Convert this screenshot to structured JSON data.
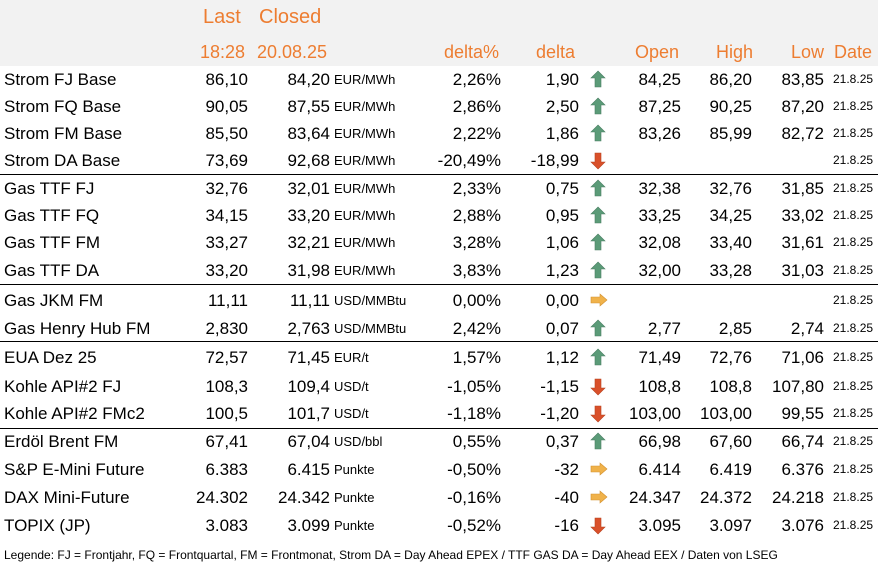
{
  "header": {
    "last_label": "Last",
    "closed_label": "Closed",
    "last_time": "18:28",
    "closed_date": "20.08.25",
    "delta_pct": "delta%",
    "delta": "delta",
    "open": "Open",
    "high": "High",
    "low": "Low",
    "date": "Date"
  },
  "rows": [
    {
      "name": "Strom FJ Base",
      "last": "86,10",
      "closed": "84,20",
      "unit": "EUR/MWh",
      "dp": "2,26%",
      "d": "1,90",
      "dir": "up",
      "open": "84,25",
      "high": "86,20",
      "low": "83,85",
      "date": "21.8.25"
    },
    {
      "name": "Strom FQ Base",
      "last": "90,05",
      "closed": "87,55",
      "unit": "EUR/MWh",
      "dp": "2,86%",
      "d": "2,50",
      "dir": "up",
      "open": "87,25",
      "high": "90,25",
      "low": "87,20",
      "date": "21.8.25"
    },
    {
      "name": "Strom FM Base",
      "last": "85,50",
      "closed": "83,64",
      "unit": "EUR/MWh",
      "dp": "2,22%",
      "d": "1,86",
      "dir": "up",
      "open": "83,26",
      "high": "85,99",
      "low": "82,72",
      "date": "21.8.25"
    },
    {
      "name": "Strom DA Base",
      "last": "73,69",
      "closed": "92,68",
      "unit": "EUR/MWh",
      "dp": "-20,49%",
      "d": "-18,99",
      "dir": "down",
      "open": "",
      "high": "",
      "low": "",
      "date": "21.8.25"
    },
    {
      "name": "Gas TTF FJ",
      "last": "32,76",
      "closed": "32,01",
      "unit": "EUR/MWh",
      "dp": "2,33%",
      "d": "0,75",
      "dir": "up",
      "open": "32,38",
      "high": "32,76",
      "low": "31,85",
      "date": "21.8.25"
    },
    {
      "name": "Gas TTF FQ",
      "last": "34,15",
      "closed": "33,20",
      "unit": "EUR/MWh",
      "dp": "2,88%",
      "d": "0,95",
      "dir": "up",
      "open": "33,25",
      "high": "34,25",
      "low": "33,02",
      "date": "21.8.25"
    },
    {
      "name": "Gas TTF FM",
      "last": "33,27",
      "closed": "32,21",
      "unit": "EUR/MWh",
      "dp": "3,28%",
      "d": "1,06",
      "dir": "up",
      "open": "32,08",
      "high": "33,40",
      "low": "31,61",
      "date": "21.8.25"
    },
    {
      "name": "Gas TTF DA",
      "last": "33,20",
      "closed": "31,98",
      "unit": "EUR/MWh",
      "dp": "3,83%",
      "d": "1,23",
      "dir": "up",
      "open": "32,00",
      "high": "33,28",
      "low": "31,03",
      "date": "21.8.25"
    },
    {
      "name": "Gas JKM FM",
      "last": "11,11",
      "closed": "11,11",
      "unit": "USD/MMBtu",
      "dp": "0,00%",
      "d": "0,00",
      "dir": "flat",
      "open": "",
      "high": "",
      "low": "",
      "date": "21.8.25"
    },
    {
      "name": "Gas Henry Hub FM",
      "last": "2,830",
      "closed": "2,763",
      "unit": "USD/MMBtu",
      "dp": "2,42%",
      "d": "0,07",
      "dir": "up",
      "open": "2,77",
      "high": "2,85",
      "low": "2,74",
      "date": "21.8.25"
    },
    {
      "name": "EUA Dez 25",
      "last": "72,57",
      "closed": "71,45",
      "unit": "EUR/t",
      "dp": "1,57%",
      "d": "1,12",
      "dir": "up",
      "open": "71,49",
      "high": "72,76",
      "low": "71,06",
      "date": "21.8.25"
    },
    {
      "name": "Kohle API#2 FJ",
      "last": "108,3",
      "closed": "109,4",
      "unit": "USD/t",
      "dp": "-1,05%",
      "d": "-1,15",
      "dir": "down",
      "open": "108,8",
      "high": "108,8",
      "low": "107,80",
      "date": "21.8.25"
    },
    {
      "name": "Kohle API#2 FMc2",
      "last": "100,5",
      "closed": "101,7",
      "unit": "USD/t",
      "dp": "-1,18%",
      "d": "-1,20",
      "dir": "down",
      "open": "103,00",
      "high": "103,00",
      "low": "99,55",
      "date": "21.8.25"
    },
    {
      "name": "Erdöl Brent FM",
      "last": "67,41",
      "closed": "67,04",
      "unit": "USD/bbl",
      "dp": "0,55%",
      "d": "0,37",
      "dir": "up",
      "open": "66,98",
      "high": "67,60",
      "low": "66,74",
      "date": "21.8.25"
    },
    {
      "name": "S&P E-Mini Future",
      "last": "6.383",
      "closed": "6.415",
      "unit": "Punkte",
      "dp": "-0,50%",
      "d": "-32",
      "dir": "flat",
      "open": "6.414",
      "high": "6.419",
      "low": "6.376",
      "date": "21.8.25"
    },
    {
      "name": "DAX Mini-Future",
      "last": "24.302",
      "closed": "24.342",
      "unit": "Punkte",
      "dp": "-0,16%",
      "d": "-40",
      "dir": "flat",
      "open": "24.347",
      "high": "24.372",
      "low": "24.218",
      "date": "21.8.25"
    },
    {
      "name": "TOPIX (JP)",
      "last": "3.083",
      "closed": "3.099",
      "unit": "Punkte",
      "dp": "-0,52%",
      "d": "-16",
      "dir": "down",
      "open": "3.095",
      "high": "3.097",
      "low": "3.076",
      "date": "21.8.25"
    }
  ],
  "legend": "Legende: FJ = Frontjahr, FQ = Frontquartal, FM = Frontmonat, Strom DA = Day Ahead EPEX / TTF GAS DA = Day Ahead EEX / Daten von LSEG",
  "colors": {
    "up": "#5b9b78",
    "down": "#d9502a",
    "flat": "#f0b24a",
    "header_text": "#ed7d31"
  }
}
